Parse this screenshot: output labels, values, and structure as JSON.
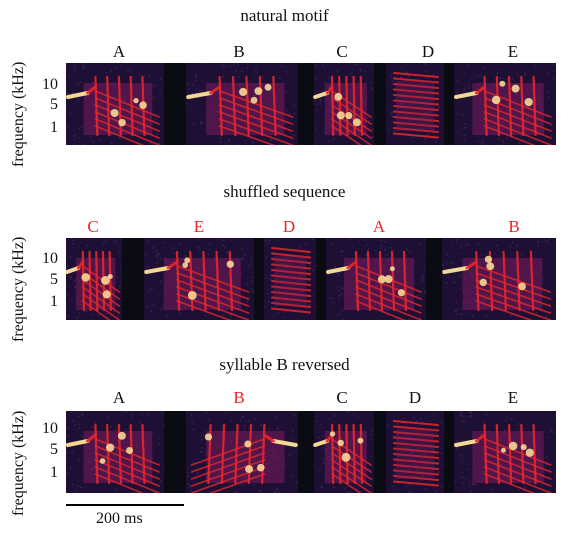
{
  "panels": [
    {
      "title": "natural motif",
      "ylabel": "frequency (kHz)",
      "ticks": [
        "10",
        "5",
        "1"
      ],
      "syllables": [
        {
          "label": "A",
          "color": "#111111",
          "reversed": false
        },
        {
          "label": "B",
          "color": "#111111",
          "reversed": false
        },
        {
          "label": "C",
          "color": "#111111",
          "reversed": false
        },
        {
          "label": "D",
          "color": "#111111",
          "reversed": false
        },
        {
          "label": "E",
          "color": "#111111",
          "reversed": false
        }
      ]
    },
    {
      "title": "shuffled sequence",
      "ylabel": "frequency (kHz)",
      "ticks": [
        "10",
        "5",
        "1"
      ],
      "syllables": [
        {
          "label": "C",
          "color": "#e8262a",
          "reversed": false
        },
        {
          "label": "E",
          "color": "#e8262a",
          "reversed": false
        },
        {
          "label": "D",
          "color": "#e8262a",
          "reversed": false
        },
        {
          "label": "A",
          "color": "#e8262a",
          "reversed": false
        },
        {
          "label": "B",
          "color": "#e8262a",
          "reversed": false
        }
      ]
    },
    {
      "title": "syllable B reversed",
      "ylabel": "frequency (kHz)",
      "ticks": [
        "10",
        "5",
        "1"
      ],
      "syllables": [
        {
          "label": "A",
          "color": "#111111",
          "reversed": false
        },
        {
          "label": "B",
          "color": "#e8262a",
          "reversed": true
        },
        {
          "label": "C",
          "color": "#111111",
          "reversed": false
        },
        {
          "label": "D",
          "color": "#111111",
          "reversed": false
        },
        {
          "label": "E",
          "color": "#111111",
          "reversed": false
        }
      ]
    }
  ],
  "scale_bar": {
    "label": "200 ms"
  },
  "colors": {
    "background": "#1e1035",
    "gap": "#0b0b14",
    "energy_hi": "#ffe39a",
    "energy_mid": "#e8262a",
    "energy_lo": "#7a1c5c"
  }
}
